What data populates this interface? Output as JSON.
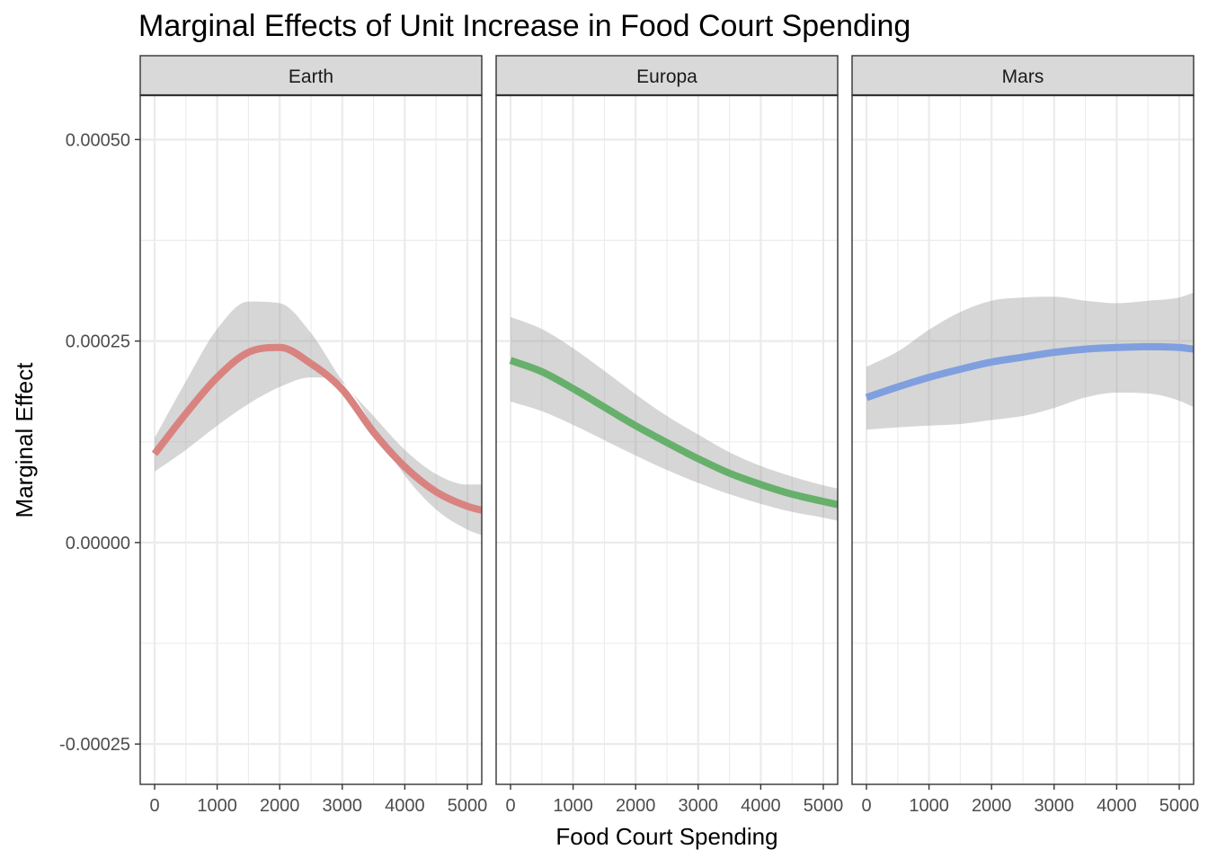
{
  "chart_data": {
    "type": "line",
    "title": "Marginal Effects of Unit Increase in Food Court Spending",
    "xlabel": "Food Court Spending",
    "ylabel": "Marginal Effect",
    "xlim": [
      -230,
      5230
    ],
    "ylim": [
      -0.0003,
      0.000555
    ],
    "x_ticks": [
      0,
      1000,
      2000,
      3000,
      4000,
      5000
    ],
    "x_tick_labels": [
      "0",
      "1000",
      "2000",
      "3000",
      "4000",
      "5000"
    ],
    "y_ticks": [
      -0.00025,
      0,
      0.00025,
      0.0005
    ],
    "y_tick_labels": [
      "-0.00025",
      "0.00000",
      "0.00025",
      "0.00050"
    ],
    "grid": true,
    "legend": "none",
    "x": [
      0,
      500,
      1000,
      1500,
      2000,
      2500,
      3000,
      3500,
      4000,
      4500,
      5000,
      5230
    ],
    "panels": [
      {
        "label": "Earth",
        "color": "#d98380",
        "values": [
          0.00011,
          0.00016,
          0.000205,
          0.000236,
          0.000242,
          0.000222,
          0.00019,
          0.000137,
          9.4e-05,
          6.3e-05,
          4.5e-05,
          4e-05
        ],
        "lower": [
          8.8e-05,
          0.000115,
          0.000145,
          0.000172,
          0.000193,
          0.000205,
          0.000198,
          0.000143,
          8.3e-05,
          4.1e-05,
          1.6e-05,
          9e-06
        ],
        "upper": [
          0.00013,
          0.0002,
          0.000265,
          0.000299,
          0.000297,
          0.00026,
          0.000201,
          0.000157,
          0.000115,
          8.5e-05,
          7.2e-05,
          7.2e-05
        ]
      },
      {
        "label": "Europa",
        "color": "#66b06b",
        "values": [
          0.000226,
          0.000212,
          0.000191,
          0.000168,
          0.000145,
          0.000124,
          0.000104,
          8.6e-05,
          7.2e-05,
          6e-05,
          5.1e-05,
          4.7e-05
        ],
        "lower": [
          0.000175,
          0.000163,
          0.000146,
          0.000127,
          0.000108,
          9e-05,
          7.4e-05,
          6e-05,
          4.8e-05,
          3.8e-05,
          3.1e-05,
          2.7e-05
        ],
        "upper": [
          0.00028,
          0.000265,
          0.000241,
          0.000213,
          0.000184,
          0.000157,
          0.000134,
          0.000112,
          9.5e-05,
          8.2e-05,
          7.1e-05,
          6.7e-05
        ]
      },
      {
        "label": "Mars",
        "color": "#7f9fdf",
        "values": [
          0.00018,
          0.000193,
          0.000205,
          0.000215,
          0.000224,
          0.00023,
          0.000236,
          0.00024,
          0.000242,
          0.000243,
          0.000242,
          0.00024
        ],
        "lower": [
          0.00014,
          0.000143,
          0.000145,
          0.000147,
          0.000152,
          0.000157,
          0.000167,
          0.00018,
          0.000186,
          0.000185,
          0.000176,
          0.000168
        ],
        "upper": [
          0.000218,
          0.000237,
          0.000264,
          0.000286,
          0.0003,
          0.000304,
          0.000305,
          0.0003,
          0.000297,
          0.0003,
          0.000304,
          0.00031
        ]
      }
    ]
  }
}
